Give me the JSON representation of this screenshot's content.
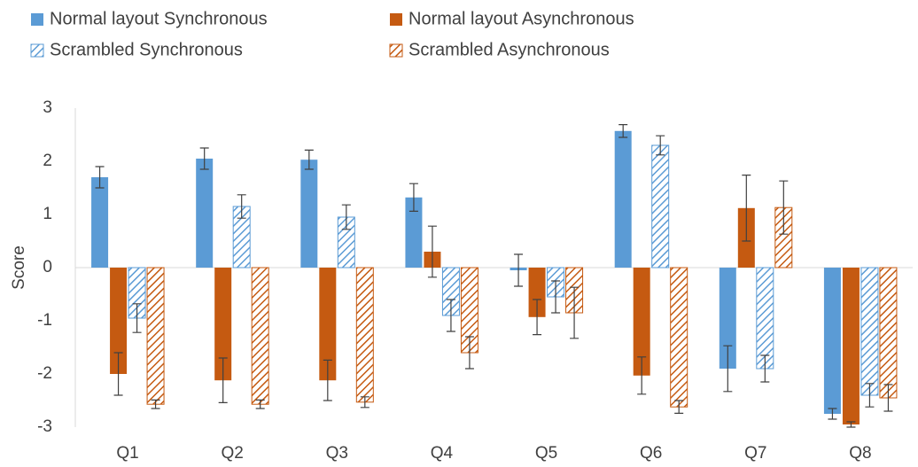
{
  "chart_data": {
    "type": "bar",
    "y_label": "Score",
    "categories": [
      "Q1",
      "Q2",
      "Q3",
      "Q4",
      "Q5",
      "Q6",
      "Q7",
      "Q8"
    ],
    "ylim": [
      -3,
      3
    ],
    "yticks": [
      -3,
      -2,
      -1,
      0,
      1,
      2,
      3
    ],
    "series": [
      {
        "name": "Normal layout Synchronous",
        "color": "#5b9bd5",
        "hatched": false,
        "values": [
          1.7,
          2.05,
          2.03,
          1.32,
          -0.05,
          2.57,
          -1.9,
          -2.75
        ],
        "errors": [
          0.2,
          0.2,
          0.18,
          0.26,
          0.3,
          0.12,
          0.43,
          0.1
        ]
      },
      {
        "name": "Normal layout Asynchronous",
        "color": "#c55a11",
        "hatched": false,
        "values": [
          -2.0,
          -2.12,
          -2.12,
          0.3,
          -0.93,
          -2.03,
          1.12,
          -2.95
        ],
        "errors": [
          0.4,
          0.42,
          0.38,
          0.48,
          0.33,
          0.35,
          0.62,
          0.05
        ]
      },
      {
        "name": "Scrambled Synchronous",
        "color": "#5b9bd5",
        "hatched": true,
        "values": [
          -0.95,
          1.15,
          0.95,
          -0.9,
          -0.55,
          2.3,
          -1.9,
          -2.4
        ],
        "errors": [
          0.27,
          0.22,
          0.23,
          0.3,
          0.3,
          0.18,
          0.25,
          0.22
        ]
      },
      {
        "name": "Scrambled Asynchronous",
        "color": "#c55a11",
        "hatched": true,
        "values": [
          -2.57,
          -2.57,
          -2.53,
          -1.6,
          -0.85,
          -2.62,
          1.13,
          -2.45
        ],
        "errors": [
          0.08,
          0.08,
          0.1,
          0.3,
          0.48,
          0.12,
          0.5,
          0.25
        ]
      }
    ]
  }
}
